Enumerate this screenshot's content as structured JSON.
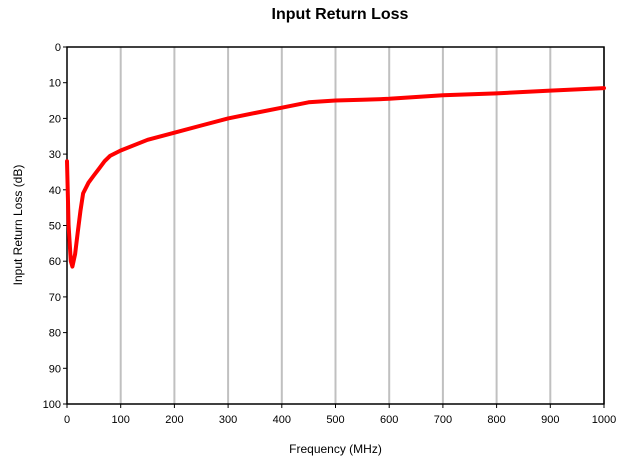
{
  "chart_data": {
    "type": "line",
    "title": "Input Return Loss",
    "xlabel": "Frequency (MHz)",
    "ylabel": "Input Return Loss (dB)",
    "xlim": [
      0,
      1000
    ],
    "ylim": [
      0,
      100
    ],
    "y_inverted": true,
    "grid": "vertical",
    "x_ticks": [
      0,
      100,
      200,
      300,
      400,
      500,
      600,
      700,
      800,
      900,
      1000
    ],
    "y_ticks": [
      0,
      10,
      20,
      30,
      40,
      50,
      60,
      70,
      80,
      90,
      100
    ],
    "colors": {
      "series": "#ff0000",
      "grid": "#c0c0c0"
    },
    "series": [
      {
        "name": "",
        "x": [
          0,
          3,
          7,
          10,
          15,
          20,
          25,
          30,
          40,
          50,
          60,
          70,
          80,
          100,
          150,
          200,
          250,
          300,
          350,
          400,
          450,
          500,
          550,
          600,
          700,
          800,
          900,
          1000
        ],
        "y": [
          32,
          50,
          60,
          61.5,
          58,
          52,
          46,
          41,
          38,
          36,
          34,
          32,
          30.5,
          29,
          26,
          24,
          22,
          20,
          18.5,
          17,
          15.5,
          15,
          14.8,
          14.5,
          13.5,
          13,
          12.2,
          11.5
        ]
      }
    ]
  }
}
